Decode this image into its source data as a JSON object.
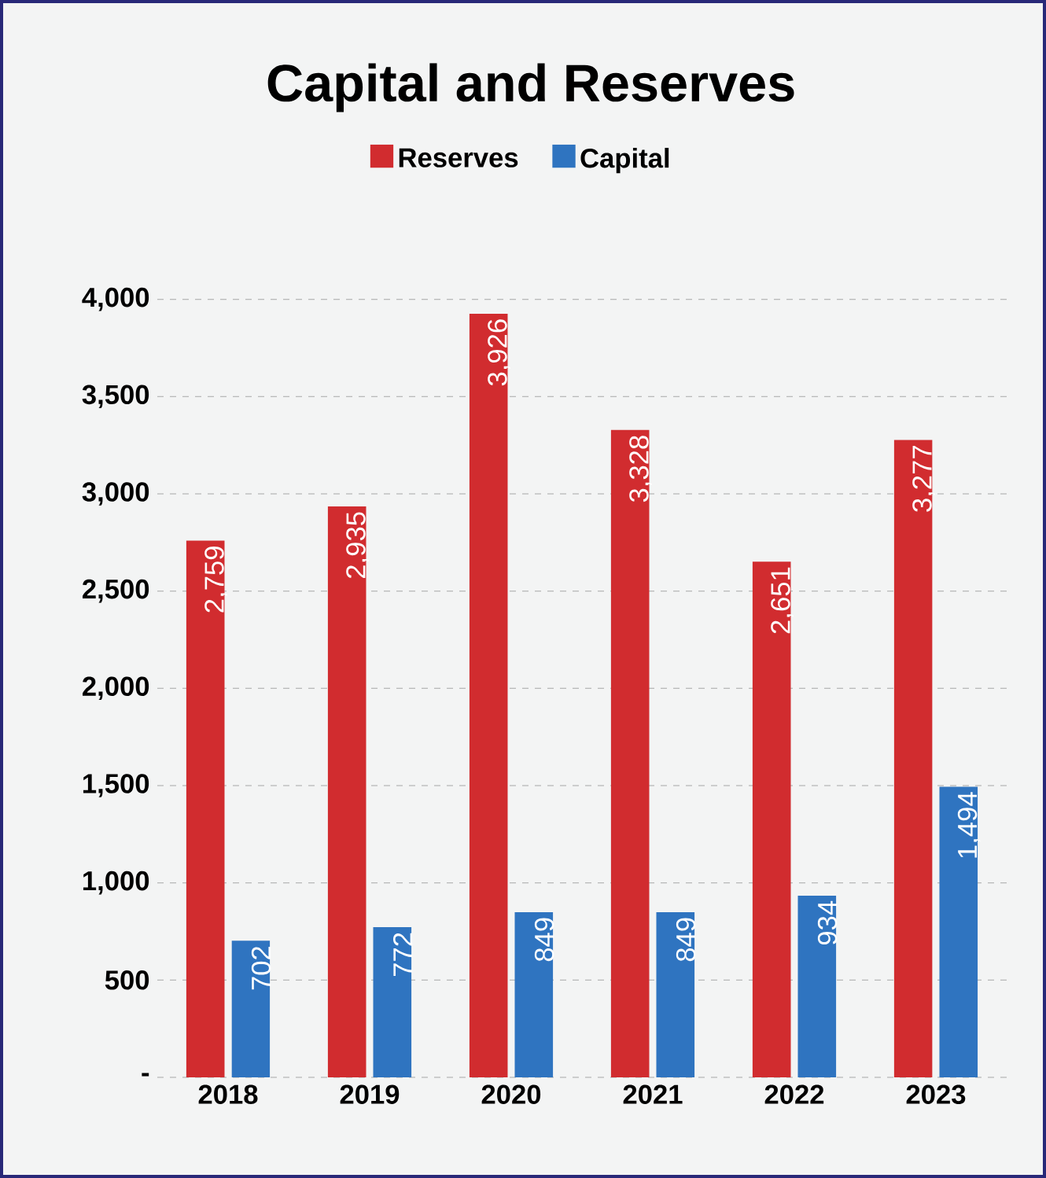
{
  "chart_data": {
    "type": "bar",
    "title": "Capital and Reserves",
    "categories": [
      "2018",
      "2019",
      "2020",
      "2021",
      "2022",
      "2023"
    ],
    "series": [
      {
        "name": "Reserves",
        "color": "#d12c2f",
        "values": [
          2759,
          2935,
          3926,
          3328,
          2651,
          3277
        ],
        "value_labels": [
          "2,759",
          "2,935",
          "3,926",
          "3,328",
          "2,651",
          "3,277"
        ]
      },
      {
        "name": "Capital",
        "color": "#2f74c0",
        "values": [
          702,
          772,
          849,
          849,
          934,
          1494
        ],
        "value_labels": [
          "702",
          "772",
          "849",
          "849",
          "934",
          "1,494"
        ]
      }
    ],
    "ylim": [
      0,
      4000
    ],
    "yticks": [
      {
        "value": 0,
        "label": "-"
      },
      {
        "value": 500,
        "label": "500"
      },
      {
        "value": 1000,
        "label": "1,000"
      },
      {
        "value": 1500,
        "label": "1,500"
      },
      {
        "value": 2000,
        "label": "2,000"
      },
      {
        "value": 2500,
        "label": "2,500"
      },
      {
        "value": 3000,
        "label": "3,000"
      },
      {
        "value": 3500,
        "label": "3,500"
      },
      {
        "value": 4000,
        "label": "4,000"
      }
    ],
    "grid": "y",
    "legend": "top"
  }
}
